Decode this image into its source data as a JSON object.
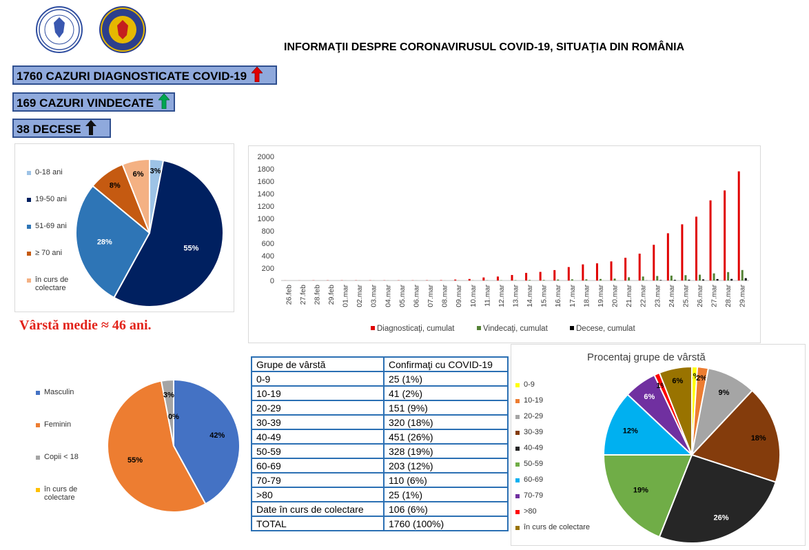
{
  "title": "INFORMAŢII DESPRE CORONAVIRUSUL COVID-19, SITUAŢIA DIN ROMÂNIA",
  "stats": {
    "cases": "1760 CAZURI DIAGNOSTICATE COVID-19",
    "recovered": "169 CAZURI VINDECATE",
    "deaths": "38 DECESE"
  },
  "colors": {
    "cases_arrow": "#e00000",
    "recovered_arrow": "#00a550",
    "deaths_arrow": "#111111",
    "stat_bg": "#8fa9dc"
  },
  "age_note": "Vârstă medie ≈ 46 ani.",
  "table": {
    "headers": [
      "Grupe de vârstă",
      "Confirmaţi cu COVID-19"
    ],
    "rows": [
      [
        "0-9",
        "25 (1%)"
      ],
      [
        "10-19",
        "41 (2%)"
      ],
      [
        "20-29",
        "151 (9%)"
      ],
      [
        "30-39",
        "320 (18%)"
      ],
      [
        "40-49",
        "451 (26%)"
      ],
      [
        "50-59",
        "328 (19%)"
      ],
      [
        "60-69",
        "203 (12%)"
      ],
      [
        "70-79",
        "110 (6%)"
      ],
      [
        ">80",
        "25 (1%)"
      ],
      [
        "Date în curs de colectare",
        "106 (6%)"
      ],
      [
        "TOTAL",
        "1760 (100%)"
      ]
    ]
  },
  "chart_data": [
    {
      "type": "pie",
      "title": "",
      "labels": [
        "0-18 ani",
        "19-50 ani",
        "51-69 ani",
        "≥ 70 ani",
        "în curs de colectare"
      ],
      "values": [
        3,
        55,
        28,
        8,
        6
      ],
      "data_labels": [
        "3%",
        "55%",
        "28%",
        "8%",
        "6%"
      ],
      "colors": [
        "#9dc3e6",
        "#002060",
        "#2e75b6",
        "#c55a11",
        "#f4b183"
      ],
      "legend_position": "left"
    },
    {
      "type": "bar",
      "title": "",
      "categories": [
        "26.feb",
        "27.feb",
        "28.feb",
        "29.feb",
        "01.mar",
        "02.mar",
        "03.mar",
        "04.mar",
        "05.mar",
        "06.mar",
        "07.mar",
        "08.mar",
        "09.mar",
        "10.mar",
        "11.mar",
        "12.mar",
        "13.mar",
        "14.mar",
        "15.mar",
        "16.mar",
        "17.mar",
        "18.mar",
        "19.mar",
        "20.mar",
        "21.mar",
        "22.mar",
        "23.mar",
        "24.mar",
        "25.mar",
        "26.mar",
        "27.mar",
        "28.mar",
        "29.mar"
      ],
      "series": [
        {
          "name": "Diagnosticaţi, cumulat",
          "color": "#e00000",
          "values": [
            1,
            1,
            3,
            3,
            3,
            3,
            3,
            3,
            3,
            3,
            4,
            6,
            15,
            25,
            49,
            64,
            89,
            123,
            139,
            168,
            217,
            260,
            277,
            308,
            367,
            433,
            576,
            762,
            906,
            1029,
            1292,
            1452,
            1760
          ]
        },
        {
          "name": "Vindecaţi, cumulat",
          "color": "#548235",
          "values": [
            0,
            0,
            0,
            0,
            1,
            1,
            1,
            1,
            1,
            1,
            1,
            1,
            1,
            2,
            3,
            4,
            6,
            9,
            9,
            16,
            19,
            19,
            25,
            31,
            52,
            64,
            73,
            79,
            86,
            94,
            115,
            136,
            169
          ]
        },
        {
          "name": "Decese, cumulat",
          "color": "#000000",
          "values": [
            0,
            0,
            0,
            0,
            0,
            0,
            0,
            0,
            0,
            0,
            0,
            0,
            0,
            0,
            0,
            0,
            0,
            0,
            0,
            0,
            0,
            0,
            0,
            0,
            0,
            2,
            8,
            11,
            13,
            17,
            24,
            26,
            38
          ]
        }
      ],
      "ylim": [
        0,
        2000
      ],
      "yticks": [
        0,
        200,
        400,
        600,
        800,
        1000,
        1200,
        1400,
        1600,
        1800,
        2000
      ],
      "grid": false,
      "legend_position": "bottom"
    },
    {
      "type": "pie",
      "title": "",
      "labels": [
        "Masculin",
        "Feminin",
        "Copii < 18",
        "în curs de colectare"
      ],
      "values": [
        42,
        55,
        3,
        0
      ],
      "data_labels": [
        "42%",
        "55%",
        "3%",
        "0%"
      ],
      "colors": [
        "#4472c4",
        "#ed7d31",
        "#a5a5a5",
        "#ffc000"
      ],
      "legend_position": "left"
    },
    {
      "type": "pie",
      "title": "Procentaj grupe de vârstă",
      "labels": [
        "0-9",
        "10-19",
        "20-29",
        "30-39",
        "40-49",
        "50-59",
        "60-69",
        "70-79",
        ">80",
        "în curs de colectare"
      ],
      "values": [
        1,
        2,
        9,
        18,
        26,
        19,
        12,
        6,
        1,
        6
      ],
      "data_labels": [
        "1%",
        "2%",
        "9%",
        "18%",
        "26%",
        "19%",
        "12%",
        "6%",
        "1%",
        "6%"
      ],
      "colors": [
        "#ffff00",
        "#ed7d31",
        "#a5a5a5",
        "#843c0c",
        "#262626",
        "#70ad47",
        "#00b0f0",
        "#7030a0",
        "#ff0000",
        "#997300"
      ],
      "legend_position": "left"
    }
  ]
}
